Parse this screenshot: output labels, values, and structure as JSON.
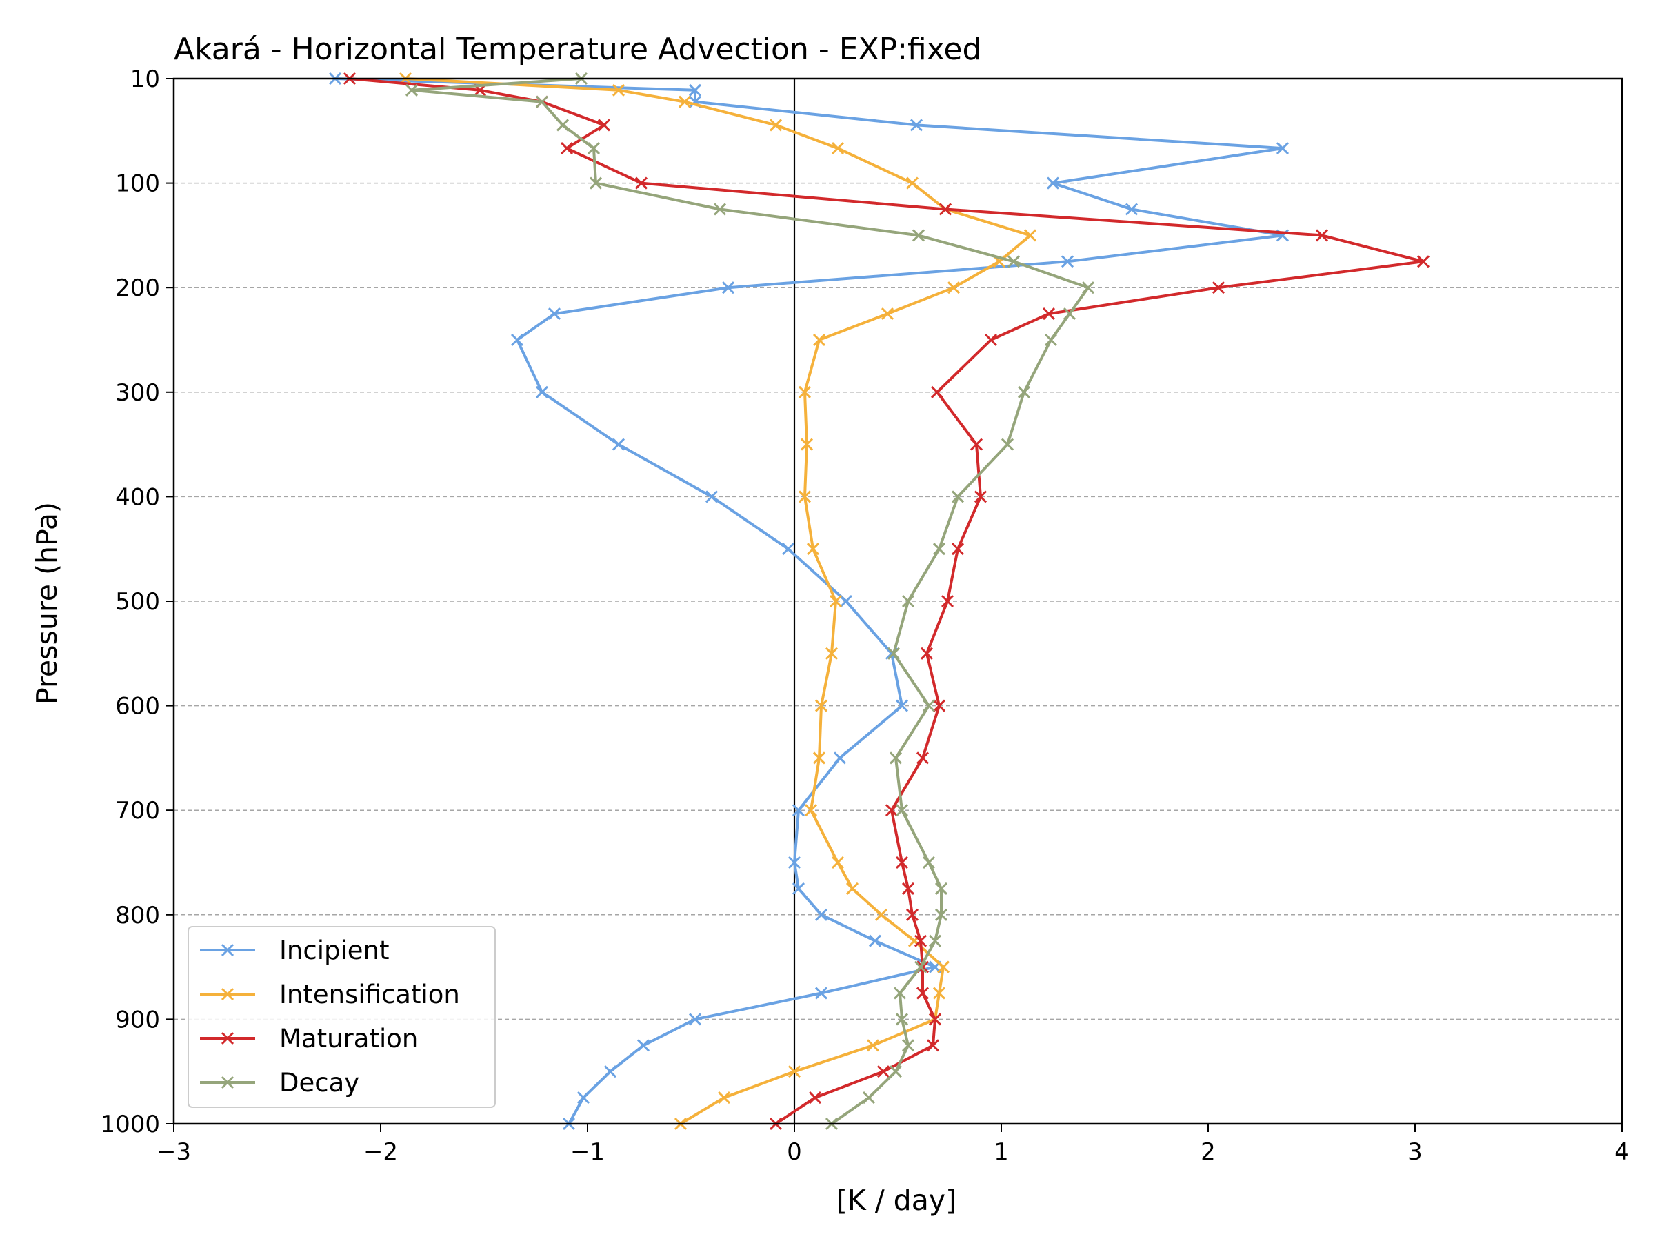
{
  "chart_data": {
    "type": "line",
    "title": "Akará - Horizontal Temperature Advection - EXP:fixed",
    "xlabel": "[K / day]",
    "ylabel": "Pressure (hPa)",
    "xlim": [
      -3,
      4
    ],
    "ylim": [
      1000,
      10
    ],
    "x_ticks": [
      -3,
      -2,
      -1,
      0,
      1,
      2,
      3,
      4
    ],
    "x_tick_labels": [
      "−3",
      "−2",
      "−1",
      "0",
      "1",
      "2",
      "3",
      "4"
    ],
    "y_ticks": [
      10,
      100,
      200,
      300,
      400,
      500,
      600,
      700,
      800,
      900,
      1000
    ],
    "y_tick_labels": [
      "10",
      "100",
      "200",
      "300",
      "400",
      "500",
      "600",
      "700",
      "800",
      "900",
      "1000"
    ],
    "grid": "horizontal dashed at y ticks",
    "zero_line": true,
    "legend_position": "lower-left",
    "marker": "x",
    "pressure_levels": [
      10,
      20,
      30,
      50,
      70,
      100,
      125,
      150,
      175,
      200,
      225,
      250,
      300,
      350,
      400,
      450,
      500,
      550,
      600,
      650,
      700,
      750,
      775,
      800,
      825,
      850,
      875,
      900,
      925,
      950,
      975,
      1000
    ],
    "series": [
      {
        "name": "Incipient",
        "color": "#6aa2e3",
        "values": [
          -2.22,
          -0.48,
          -0.48,
          0.59,
          2.36,
          1.25,
          1.63,
          2.36,
          1.32,
          -0.32,
          -1.16,
          -1.34,
          -1.22,
          -0.85,
          -0.4,
          -0.03,
          0.25,
          0.47,
          0.52,
          0.22,
          0.02,
          0.0,
          0.02,
          0.13,
          0.39,
          0.68,
          0.13,
          -0.48,
          -0.73,
          -0.89,
          -1.02,
          -1.09
        ]
      },
      {
        "name": "Intensification",
        "color": "#f5b13b",
        "values": [
          -1.88,
          -0.85,
          -0.53,
          -0.09,
          0.21,
          0.57,
          0.73,
          1.14,
          0.99,
          0.77,
          0.45,
          0.12,
          0.05,
          0.06,
          0.05,
          0.09,
          0.2,
          0.18,
          0.13,
          0.12,
          0.08,
          0.21,
          0.28,
          0.42,
          0.58,
          0.72,
          0.7,
          0.68,
          0.38,
          0.0,
          -0.34,
          -0.55
        ]
      },
      {
        "name": "Maturation",
        "color": "#d2292b",
        "values": [
          -2.15,
          -1.52,
          -1.22,
          -0.92,
          -1.1,
          -0.74,
          0.73,
          2.55,
          3.04,
          2.05,
          1.23,
          0.95,
          0.69,
          0.88,
          0.9,
          0.79,
          0.74,
          0.64,
          0.7,
          0.62,
          0.47,
          0.52,
          0.55,
          0.57,
          0.61,
          0.62,
          0.62,
          0.68,
          0.67,
          0.43,
          0.1,
          -0.09
        ]
      },
      {
        "name": "Decay",
        "color": "#95a57b",
        "values": [
          -1.03,
          -1.85,
          -1.22,
          -1.12,
          -0.97,
          -0.96,
          -0.36,
          0.6,
          1.06,
          1.42,
          1.33,
          1.24,
          1.11,
          1.03,
          0.79,
          0.7,
          0.55,
          0.48,
          0.65,
          0.49,
          0.52,
          0.65,
          0.71,
          0.71,
          0.68,
          0.61,
          0.51,
          0.52,
          0.55,
          0.49,
          0.36,
          0.18
        ]
      }
    ]
  }
}
